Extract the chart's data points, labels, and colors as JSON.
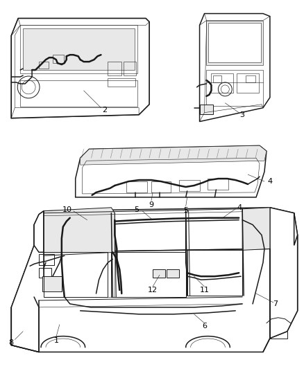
{
  "bg_color": "#ffffff",
  "line_color": "#1a1a1a",
  "label_color": "#000000",
  "figsize": [
    4.38,
    5.33
  ],
  "dpi": 100,
  "gray_fill": "#c8c8c8",
  "light_gray": "#e8e8e8"
}
